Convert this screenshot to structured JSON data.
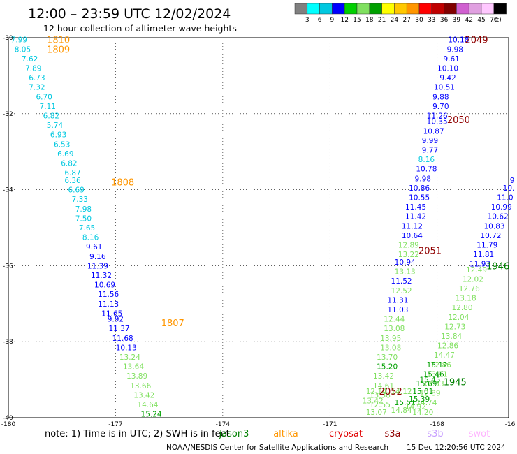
{
  "header": {
    "title": "12:00 – 23:59 UTC 12/02/2024",
    "subtitle": "12 hour collection of altimeter wave heights"
  },
  "legend": {
    "labels": [
      "3",
      "6",
      "9",
      "12",
      "15",
      "18",
      "21",
      "24",
      "27",
      "30",
      "33",
      "36",
      "39",
      "42",
      "45",
      "70",
      "(ft)"
    ],
    "colors": [
      "#808080",
      "#00ffff",
      "#00c8e0",
      "#0000ff",
      "#00d000",
      "#80e060",
      "#00a000",
      "#ffff00",
      "#ffc800",
      "#ff9600",
      "#ff0000",
      "#c00000",
      "#800000",
      "#d060d0",
      "#e0a0e0",
      "#ffc8ff",
      "#000000"
    ]
  },
  "footer": {
    "note": "note:  1) Time is in UTC; 2) SWH is in feet",
    "credit": "NOAA/NESDIS Center for Satellite Applications and Research",
    "timestamp": "15 Dec 12:20:56 UTC 2024"
  },
  "satellites": [
    {
      "name": "jason3",
      "color": "#008000"
    },
    {
      "name": "altika",
      "color": "#ff9600"
    },
    {
      "name": "cryosat",
      "color": "#e00000"
    },
    {
      "name": "s3a",
      "color": "#900000"
    },
    {
      "name": "s3b",
      "color": "#c8a0ff"
    },
    {
      "name": "swot",
      "color": "#ffb4ff"
    }
  ],
  "chart_data": {
    "type": "scatter",
    "title": "12:00 – 23:59 UTC 12/02/2024",
    "subtitle": "12 hour collection of altimeter wave heights",
    "xlim": [
      -180,
      -166
    ],
    "ylim": [
      -40,
      -30
    ],
    "xticks": [
      "-180",
      "-177",
      "-174",
      "-171",
      "-168",
      "-16"
    ],
    "yticks": [
      "-30",
      "-32",
      "-34",
      "-36",
      "-38",
      "-40"
    ],
    "grid": true,
    "pass_labels": [
      {
        "text": "1810",
        "x": -178.6,
        "y": -30.05,
        "color": "#ff9600"
      },
      {
        "text": "1809",
        "x": -178.6,
        "y": -30.3,
        "color": "#ff9600"
      },
      {
        "text": "1808",
        "x": -176.8,
        "y": -33.8,
        "color": "#ff9600"
      },
      {
        "text": "1807",
        "x": -175.4,
        "y": -37.5,
        "color": "#ff9600"
      },
      {
        "text": "2049",
        "x": -166.9,
        "y": -30.05,
        "color": "#900000"
      },
      {
        "text": "2050",
        "x": -167.4,
        "y": -32.15,
        "color": "#900000"
      },
      {
        "text": "2051",
        "x": -168.2,
        "y": -35.6,
        "color": "#900000"
      },
      {
        "text": "2052",
        "x": -169.3,
        "y": -39.3,
        "color": "#900000"
      },
      {
        "text": "1946",
        "x": -166.3,
        "y": -36.0,
        "color": "#008000"
      },
      {
        "text": "1945",
        "x": -167.5,
        "y": -39.05,
        "color": "#008000"
      }
    ],
    "points": [
      {
        "x": -179.7,
        "y": -30.05,
        "v": "7.99",
        "c": "#00c8e0"
      },
      {
        "x": -179.6,
        "y": -30.3,
        "v": "8.05",
        "c": "#00c8e0"
      },
      {
        "x": -179.4,
        "y": -30.55,
        "v": "7.62",
        "c": "#00c8e0"
      },
      {
        "x": -179.3,
        "y": -30.8,
        "v": "7.89",
        "c": "#00c8e0"
      },
      {
        "x": -179.2,
        "y": -31.05,
        "v": "6.73",
        "c": "#00c8e0"
      },
      {
        "x": -179.2,
        "y": -31.3,
        "v": "7.32",
        "c": "#00c8e0"
      },
      {
        "x": -179.0,
        "y": -31.55,
        "v": "6.70",
        "c": "#00c8e0"
      },
      {
        "x": -178.9,
        "y": -31.8,
        "v": "7.11",
        "c": "#00c8e0"
      },
      {
        "x": -178.8,
        "y": -32.05,
        "v": "6.82",
        "c": "#00c8e0"
      },
      {
        "x": -178.7,
        "y": -32.3,
        "v": "5.74",
        "c": "#00c8e0"
      },
      {
        "x": -178.6,
        "y": -32.55,
        "v": "6.93",
        "c": "#00c8e0"
      },
      {
        "x": -178.5,
        "y": -32.8,
        "v": "6.53",
        "c": "#00c8e0"
      },
      {
        "x": -178.4,
        "y": -33.05,
        "v": "6.69",
        "c": "#00c8e0"
      },
      {
        "x": -178.3,
        "y": -33.3,
        "v": "6.82",
        "c": "#00c8e0"
      },
      {
        "x": -178.2,
        "y": -33.55,
        "v": "6.87",
        "c": "#00c8e0"
      },
      {
        "x": -178.2,
        "y": -33.75,
        "v": "6.36",
        "c": "#00c8e0"
      },
      {
        "x": -178.1,
        "y": -34.0,
        "v": "6.69",
        "c": "#00c8e0"
      },
      {
        "x": -178.0,
        "y": -34.25,
        "v": "7.33",
        "c": "#00c8e0"
      },
      {
        "x": -177.9,
        "y": -34.5,
        "v": "7.98",
        "c": "#00c8e0"
      },
      {
        "x": -177.9,
        "y": -34.75,
        "v": "7.50",
        "c": "#00c8e0"
      },
      {
        "x": -177.8,
        "y": -35.0,
        "v": "7.65",
        "c": "#00c8e0"
      },
      {
        "x": -177.7,
        "y": -35.25,
        "v": "8.16",
        "c": "#00c8e0"
      },
      {
        "x": -177.6,
        "y": -35.5,
        "v": "9.61",
        "c": "#0000ff"
      },
      {
        "x": -177.5,
        "y": -35.75,
        "v": "9.16",
        "c": "#0000ff"
      },
      {
        "x": -177.5,
        "y": -36.0,
        "v": "11.39",
        "c": "#0000ff"
      },
      {
        "x": -177.4,
        "y": -36.25,
        "v": "11.32",
        "c": "#0000ff"
      },
      {
        "x": -177.3,
        "y": -36.5,
        "v": "10.69",
        "c": "#0000ff"
      },
      {
        "x": -177.2,
        "y": -36.75,
        "v": "11.56",
        "c": "#0000ff"
      },
      {
        "x": -177.2,
        "y": -37.0,
        "v": "11.13",
        "c": "#0000ff"
      },
      {
        "x": -177.1,
        "y": -37.25,
        "v": "11.65",
        "c": "#0000ff"
      },
      {
        "x": -177.0,
        "y": -37.4,
        "v": "9.92",
        "c": "#0000ff"
      },
      {
        "x": -176.9,
        "y": -37.65,
        "v": "11.37",
        "c": "#0000ff"
      },
      {
        "x": -176.8,
        "y": -37.9,
        "v": "11.68",
        "c": "#0000ff"
      },
      {
        "x": -176.7,
        "y": -38.15,
        "v": "10.13",
        "c": "#0000ff"
      },
      {
        "x": -176.6,
        "y": -38.4,
        "v": "13.24",
        "c": "#80e060"
      },
      {
        "x": -176.5,
        "y": -38.65,
        "v": "13.64",
        "c": "#80e060"
      },
      {
        "x": -176.4,
        "y": -38.9,
        "v": "13.89",
        "c": "#80e060"
      },
      {
        "x": -176.3,
        "y": -39.15,
        "v": "13.66",
        "c": "#80e060"
      },
      {
        "x": -176.2,
        "y": -39.4,
        "v": "13.42",
        "c": "#80e060"
      },
      {
        "x": -176.1,
        "y": -39.65,
        "v": "14.64",
        "c": "#80e060"
      },
      {
        "x": -176.0,
        "y": -39.9,
        "v": "15.24",
        "c": "#00a000"
      },
      {
        "x": -167.4,
        "y": -30.05,
        "v": "10.18",
        "c": "#0000ff"
      },
      {
        "x": -167.5,
        "y": -30.3,
        "v": "9.98",
        "c": "#0000ff"
      },
      {
        "x": -167.6,
        "y": -30.55,
        "v": "9.61",
        "c": "#0000ff"
      },
      {
        "x": -167.7,
        "y": -30.8,
        "v": "10.10",
        "c": "#0000ff"
      },
      {
        "x": -167.7,
        "y": -31.05,
        "v": "9.42",
        "c": "#0000ff"
      },
      {
        "x": -167.8,
        "y": -31.3,
        "v": "10.51",
        "c": "#0000ff"
      },
      {
        "x": -167.9,
        "y": -31.55,
        "v": "9.88",
        "c": "#0000ff"
      },
      {
        "x": -167.9,
        "y": -31.8,
        "v": "9.70",
        "c": "#0000ff"
      },
      {
        "x": -168.0,
        "y": -32.05,
        "v": "11.26",
        "c": "#0000ff"
      },
      {
        "x": -168.0,
        "y": -32.2,
        "v": "10.35",
        "c": "#0000ff"
      },
      {
        "x": -168.1,
        "y": -32.45,
        "v": "10.87",
        "c": "#0000ff"
      },
      {
        "x": -168.2,
        "y": -32.7,
        "v": "9.99",
        "c": "#0000ff"
      },
      {
        "x": -168.2,
        "y": -32.95,
        "v": "9.77",
        "c": "#0000ff"
      },
      {
        "x": -168.3,
        "y": -33.2,
        "v": "8.16",
        "c": "#00c8e0"
      },
      {
        "x": -168.3,
        "y": -33.45,
        "v": "10.78",
        "c": "#0000ff"
      },
      {
        "x": -168.4,
        "y": -33.7,
        "v": "9.98",
        "c": "#0000ff"
      },
      {
        "x": -168.5,
        "y": -33.95,
        "v": "10.86",
        "c": "#0000ff"
      },
      {
        "x": -168.5,
        "y": -34.2,
        "v": "10.55",
        "c": "#0000ff"
      },
      {
        "x": -168.6,
        "y": -34.45,
        "v": "11.45",
        "c": "#0000ff"
      },
      {
        "x": -168.6,
        "y": -34.7,
        "v": "11.42",
        "c": "#0000ff"
      },
      {
        "x": -168.7,
        "y": -34.95,
        "v": "11.12",
        "c": "#0000ff"
      },
      {
        "x": -168.7,
        "y": -35.2,
        "v": "10.64",
        "c": "#0000ff"
      },
      {
        "x": -168.8,
        "y": -35.45,
        "v": "12.89",
        "c": "#80e060"
      },
      {
        "x": -168.8,
        "y": -35.7,
        "v": "13.22",
        "c": "#80e060"
      },
      {
        "x": -168.9,
        "y": -35.9,
        "v": "10.94",
        "c": "#0000ff"
      },
      {
        "x": -168.9,
        "y": -36.15,
        "v": "13.13",
        "c": "#80e060"
      },
      {
        "x": -169.0,
        "y": -36.4,
        "v": "11.52",
        "c": "#0000ff"
      },
      {
        "x": -169.0,
        "y": -36.65,
        "v": "12.52",
        "c": "#80e060"
      },
      {
        "x": -169.1,
        "y": -36.9,
        "v": "11.31",
        "c": "#0000ff"
      },
      {
        "x": -169.1,
        "y": -37.15,
        "v": "11.03",
        "c": "#0000ff"
      },
      {
        "x": -169.2,
        "y": -37.4,
        "v": "12.44",
        "c": "#80e060"
      },
      {
        "x": -169.2,
        "y": -37.65,
        "v": "13.08",
        "c": "#80e060"
      },
      {
        "x": -169.3,
        "y": -37.9,
        "v": "13.95",
        "c": "#80e060"
      },
      {
        "x": -169.3,
        "y": -38.15,
        "v": "13.08",
        "c": "#80e060"
      },
      {
        "x": -169.4,
        "y": -38.4,
        "v": "13.70",
        "c": "#80e060"
      },
      {
        "x": -169.4,
        "y": -38.65,
        "v": "15.20",
        "c": "#00a000"
      },
      {
        "x": -169.5,
        "y": -38.9,
        "v": "13.42",
        "c": "#80e060"
      },
      {
        "x": -169.5,
        "y": -39.15,
        "v": "14.61",
        "c": "#80e060"
      },
      {
        "x": -169.6,
        "y": -39.4,
        "v": "13.38",
        "c": "#80e060"
      },
      {
        "x": -169.6,
        "y": -39.65,
        "v": "12.55",
        "c": "#80e060"
      },
      {
        "x": -169.7,
        "y": -39.85,
        "v": "13.07",
        "c": "#80e060"
      },
      {
        "x": -169.7,
        "y": -39.3,
        "v": "12.14",
        "c": "#80e060"
      },
      {
        "x": -169.8,
        "y": -39.55,
        "v": "13.42",
        "c": "#80e060"
      },
      {
        "x": -168.9,
        "y": -39.6,
        "v": "15.51",
        "c": "#00a000"
      },
      {
        "x": -169.0,
        "y": -39.8,
        "v": "14.84",
        "c": "#80e060"
      },
      {
        "x": -169.0,
        "y": -39.3,
        "v": "14.12",
        "c": "#80e060"
      },
      {
        "x": -165.9,
        "y": -33.75,
        "v": "9",
        "c": "#0000ff"
      },
      {
        "x": -166.0,
        "y": -33.95,
        "v": "10.",
        "c": "#0000ff"
      },
      {
        "x": -166.1,
        "y": -34.2,
        "v": "11.0",
        "c": "#0000ff"
      },
      {
        "x": -166.2,
        "y": -34.45,
        "v": "10.99",
        "c": "#0000ff"
      },
      {
        "x": -166.3,
        "y": -34.7,
        "v": "10.62",
        "c": "#0000ff"
      },
      {
        "x": -166.4,
        "y": -34.95,
        "v": "10.83",
        "c": "#0000ff"
      },
      {
        "x": -166.5,
        "y": -35.2,
        "v": "10.72",
        "c": "#0000ff"
      },
      {
        "x": -166.6,
        "y": -35.45,
        "v": "11.79",
        "c": "#0000ff"
      },
      {
        "x": -166.7,
        "y": -35.7,
        "v": "11.81",
        "c": "#0000ff"
      },
      {
        "x": -166.8,
        "y": -35.95,
        "v": "11.93",
        "c": "#0000ff"
      },
      {
        "x": -166.9,
        "y": -36.1,
        "v": "12.49",
        "c": "#80e060"
      },
      {
        "x": -167.0,
        "y": -36.35,
        "v": "12.02",
        "c": "#80e060"
      },
      {
        "x": -167.1,
        "y": -36.6,
        "v": "12.76",
        "c": "#80e060"
      },
      {
        "x": -167.2,
        "y": -36.85,
        "v": "13.18",
        "c": "#80e060"
      },
      {
        "x": -167.3,
        "y": -37.1,
        "v": "12.80",
        "c": "#80e060"
      },
      {
        "x": -167.4,
        "y": -37.35,
        "v": "12.04",
        "c": "#80e060"
      },
      {
        "x": -167.5,
        "y": -37.6,
        "v": "12.73",
        "c": "#80e060"
      },
      {
        "x": -167.6,
        "y": -37.85,
        "v": "13.84",
        "c": "#80e060"
      },
      {
        "x": -167.7,
        "y": -38.1,
        "v": "12.86",
        "c": "#80e060"
      },
      {
        "x": -167.8,
        "y": -38.35,
        "v": "14.47",
        "c": "#80e060"
      },
      {
        "x": -167.9,
        "y": -38.6,
        "v": "12.86",
        "c": "#80e060"
      },
      {
        "x": -168.0,
        "y": -38.85,
        "v": "13.91",
        "c": "#80e060"
      },
      {
        "x": -168.1,
        "y": -39.1,
        "v": "12.33",
        "c": "#80e060"
      },
      {
        "x": -168.2,
        "y": -39.35,
        "v": "12.89",
        "c": "#80e060"
      },
      {
        "x": -168.3,
        "y": -39.6,
        "v": "14.74",
        "c": "#80e060"
      },
      {
        "x": -168.4,
        "y": -39.85,
        "v": "14.20",
        "c": "#80e060"
      },
      {
        "x": -168.0,
        "y": -38.6,
        "v": "15.12",
        "c": "#00a000"
      },
      {
        "x": -168.1,
        "y": -38.85,
        "v": "15.46",
        "c": "#00a000"
      },
      {
        "x": -168.2,
        "y": -39.0,
        "v": "15.45",
        "c": "#00a000"
      },
      {
        "x": -168.3,
        "y": -39.1,
        "v": "15.69",
        "c": "#00a000"
      },
      {
        "x": -168.4,
        "y": -39.3,
        "v": "15.01",
        "c": "#00a000"
      },
      {
        "x": -168.5,
        "y": -39.5,
        "v": "15.39",
        "c": "#00a000"
      },
      {
        "x": -168.6,
        "y": -39.7,
        "v": "14.92",
        "c": "#80e060"
      }
    ]
  }
}
